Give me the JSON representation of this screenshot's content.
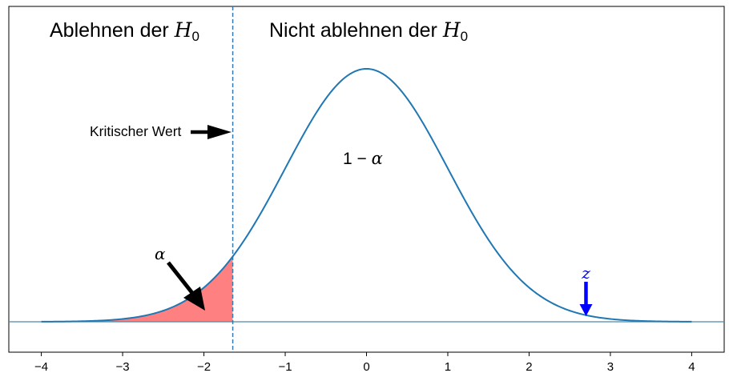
{
  "chart_data": {
    "type": "line",
    "title": "",
    "xlabel": "",
    "ylabel": "",
    "xlim": [
      -4.4,
      4.4
    ],
    "x_ticks": [
      -4,
      -3,
      -2,
      -1,
      0,
      1,
      2,
      3,
      4
    ],
    "x_tick_labels": [
      "−4",
      "−3",
      "−2",
      "−1",
      "0",
      "1",
      "2",
      "3",
      "4"
    ],
    "y_ticks_shown": false,
    "grid": false,
    "legend": "none",
    "series": [
      {
        "curve": "standard normal density",
        "x_range": [
          -4,
          4
        ],
        "color": "#1f77b4"
      }
    ],
    "critical_value": -1.645,
    "shaded_region": {
      "from": -4,
      "to": -1.645,
      "color": "#ff8080"
    },
    "baseline_y": 0,
    "baseline_color": "#4a8aa8",
    "z_value": 2.7,
    "z_marker_color": "#0000ff",
    "annotations": {
      "reject_prefix": "Ablehnen der ",
      "not_reject_prefix": "Nicht ablehnen der ",
      "h0_letter": "H",
      "h0_subscript": "0",
      "critical_label": "Kritischer Wert",
      "one_minus": "1 − ",
      "alpha": "α",
      "z": "z"
    }
  }
}
